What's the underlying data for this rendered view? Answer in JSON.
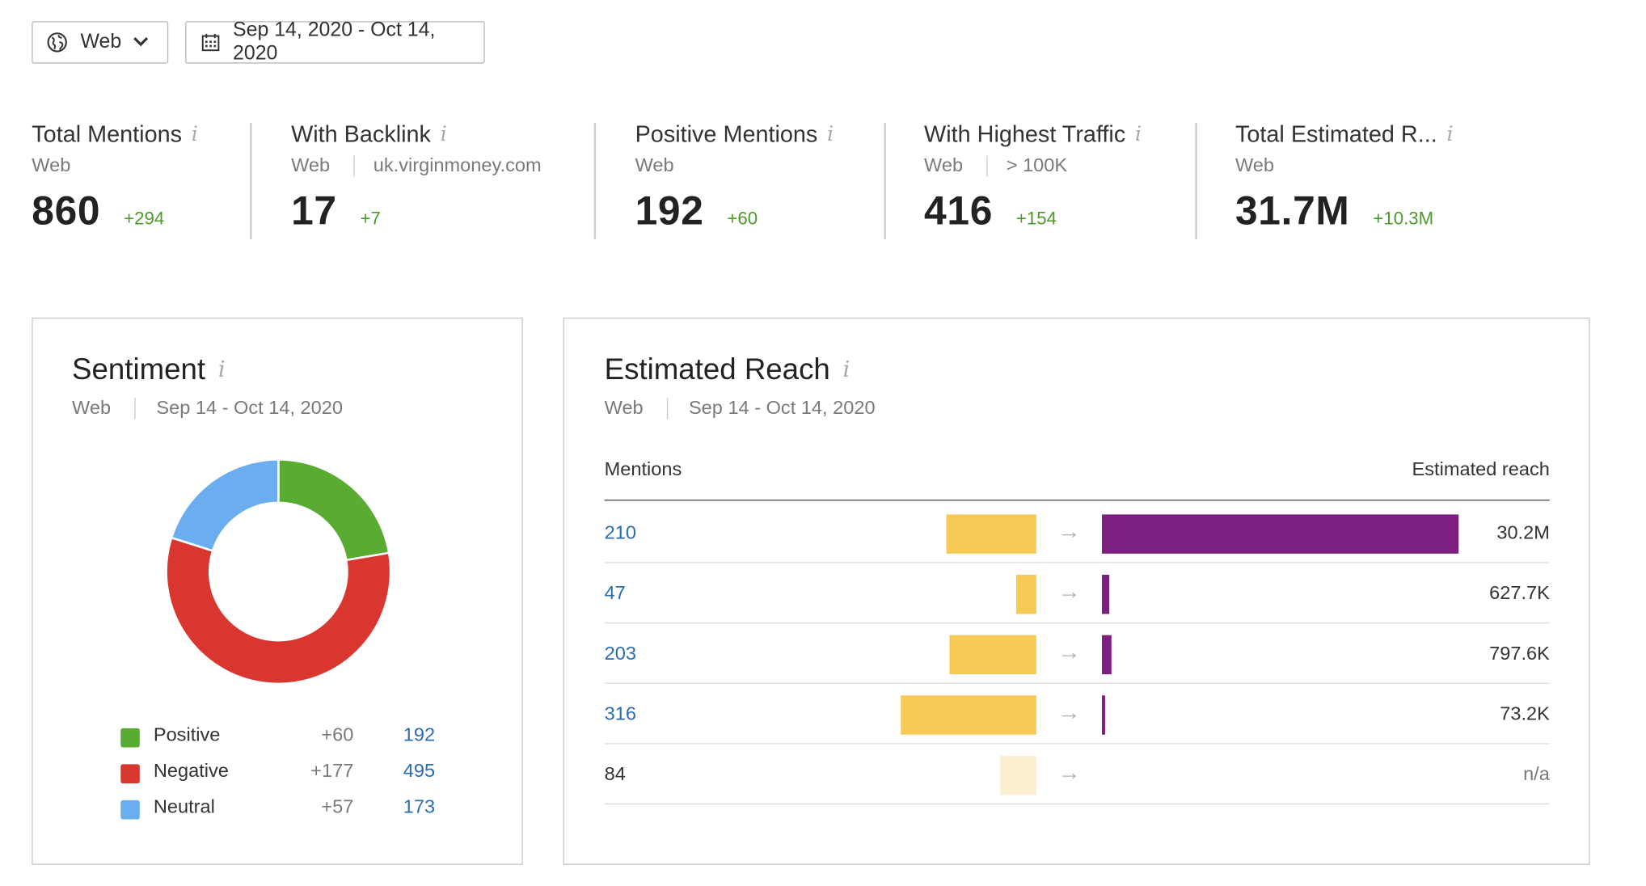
{
  "controls": {
    "source_label": "Web",
    "date_range": "Sep 14, 2020 - Oct 14, 2020"
  },
  "kpis": [
    {
      "title": "Total Mentions",
      "sub": "Web",
      "sub2": "",
      "value": "860",
      "delta": "+294"
    },
    {
      "title": "With Backlink",
      "sub": "Web",
      "sub2": "uk.virginmoney.com",
      "value": "17",
      "delta": "+7"
    },
    {
      "title": "Positive Mentions",
      "sub": "Web",
      "sub2": "",
      "value": "192",
      "delta": "+60"
    },
    {
      "title": "With Highest Traffic",
      "sub": "Web",
      "sub2": "> 100K",
      "value": "416",
      "delta": "+154"
    },
    {
      "title": "Total Estimated R...",
      "sub": "Web",
      "sub2": "",
      "value": "31.7M",
      "delta": "+10.3M"
    }
  ],
  "info_glyph": "i",
  "sentiment": {
    "title": "Sentiment",
    "source": "Web",
    "period": "Sep 14 - Oct 14, 2020",
    "legend": [
      {
        "name": "Positive",
        "delta": "+60",
        "value": "192",
        "color": "#5aab31"
      },
      {
        "name": "Negative",
        "delta": "+177",
        "value": "495",
        "color": "#d93630"
      },
      {
        "name": "Neutral",
        "delta": "+57",
        "value": "173",
        "color": "#6aaef0"
      }
    ]
  },
  "reach": {
    "title": "Estimated Reach",
    "source": "Web",
    "period": "Sep 14 - Oct 14, 2020",
    "col_left": "Mentions",
    "col_right": "Estimated reach",
    "rows": [
      {
        "mentions": "210",
        "reach": "30.2M",
        "mentions_num": 210,
        "reach_num": 30200000,
        "linked": true
      },
      {
        "mentions": "47",
        "reach": "627.7K",
        "mentions_num": 47,
        "reach_num": 627700,
        "linked": true
      },
      {
        "mentions": "203",
        "reach": "797.6K",
        "mentions_num": 203,
        "reach_num": 797600,
        "linked": true
      },
      {
        "mentions": "316",
        "reach": "73.2K",
        "mentions_num": 316,
        "reach_num": 73200,
        "linked": true
      },
      {
        "mentions": "84",
        "reach": "n/a",
        "mentions_num": 84,
        "reach_num": null,
        "linked": false
      }
    ]
  },
  "colors": {
    "mentions_bar": "#f7c955",
    "reach_bar": "#7c1f80",
    "link": "#2b6cb0",
    "delta": "#4d9a2c"
  }
}
